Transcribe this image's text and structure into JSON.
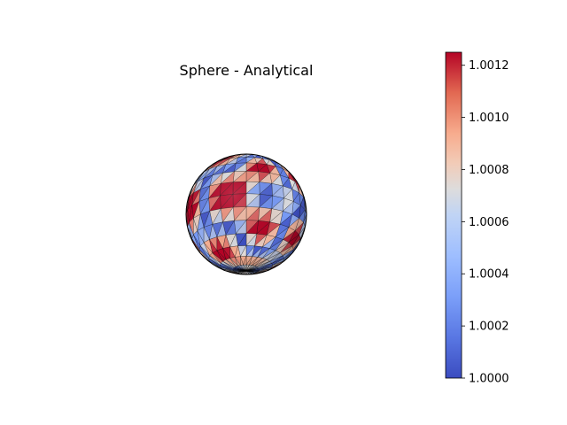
{
  "chart_data": {
    "type": "heatmap",
    "title": "Sphere - Analytical",
    "colorbar": {
      "colormap": "coolwarm",
      "vmin": 1.0,
      "vmax": 1.00125,
      "ticks": [
        1.0,
        1.0002,
        1.0004,
        1.0006,
        1.0008,
        1.001,
        1.0012
      ],
      "tick_labels": [
        "1.0000",
        "1.0002",
        "1.0004",
        "1.0006",
        "1.0008",
        "1.0010",
        "1.0012"
      ]
    },
    "surface": {
      "shape": "sphere",
      "mesh": "triangulated",
      "edge_color": "#000000"
    },
    "colors": {
      "low": "#3b4cc0",
      "mid": "#dddddd",
      "high": "#b40426"
    }
  }
}
